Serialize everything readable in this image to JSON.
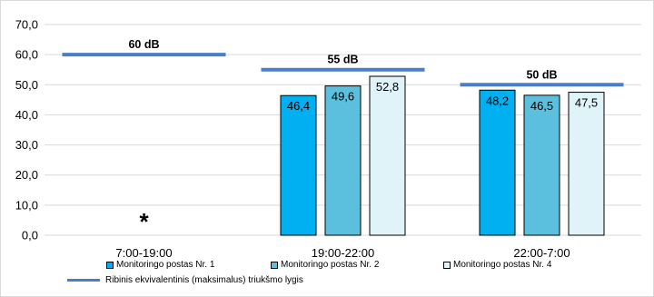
{
  "chart_data": {
    "type": "bar",
    "categories": [
      "7:00-19:00",
      "19:00-22:00",
      "22:00-7:00"
    ],
    "series": [
      {
        "name": "Monitoringo postas Nr. 1",
        "color": "#00b0f0",
        "values": [
          null,
          46.4,
          48.2
        ],
        "labels": [
          "",
          "46,4",
          "48,2"
        ]
      },
      {
        "name": "Monitoringo postas Nr. 2",
        "color": "#5bc0de",
        "values": [
          null,
          49.6,
          46.5
        ],
        "labels": [
          "",
          "49,6",
          "46,5"
        ]
      },
      {
        "name": "Monitoringo postas Nr. 4",
        "color": "#dff3f9",
        "values": [
          null,
          52.8,
          47.5
        ],
        "labels": [
          "",
          "52,8",
          "47,5"
        ]
      }
    ],
    "reference_line": {
      "name": "Ribinis ekvivalentinis (maksimalus) triukšmo lygis",
      "color": "#4a7fc8",
      "values": [
        60,
        55,
        50
      ],
      "labels": [
        "60 dB",
        "55 dB",
        "50 dB"
      ]
    },
    "annotation": "*",
    "yticks": [
      "0,0",
      "10,0",
      "20,0",
      "30,0",
      "40,0",
      "50,0",
      "60,0",
      "70,0"
    ],
    "ylim": [
      0,
      70
    ],
    "grid": true,
    "legend_position": "bottom",
    "title": "",
    "xlabel": "",
    "ylabel": ""
  }
}
